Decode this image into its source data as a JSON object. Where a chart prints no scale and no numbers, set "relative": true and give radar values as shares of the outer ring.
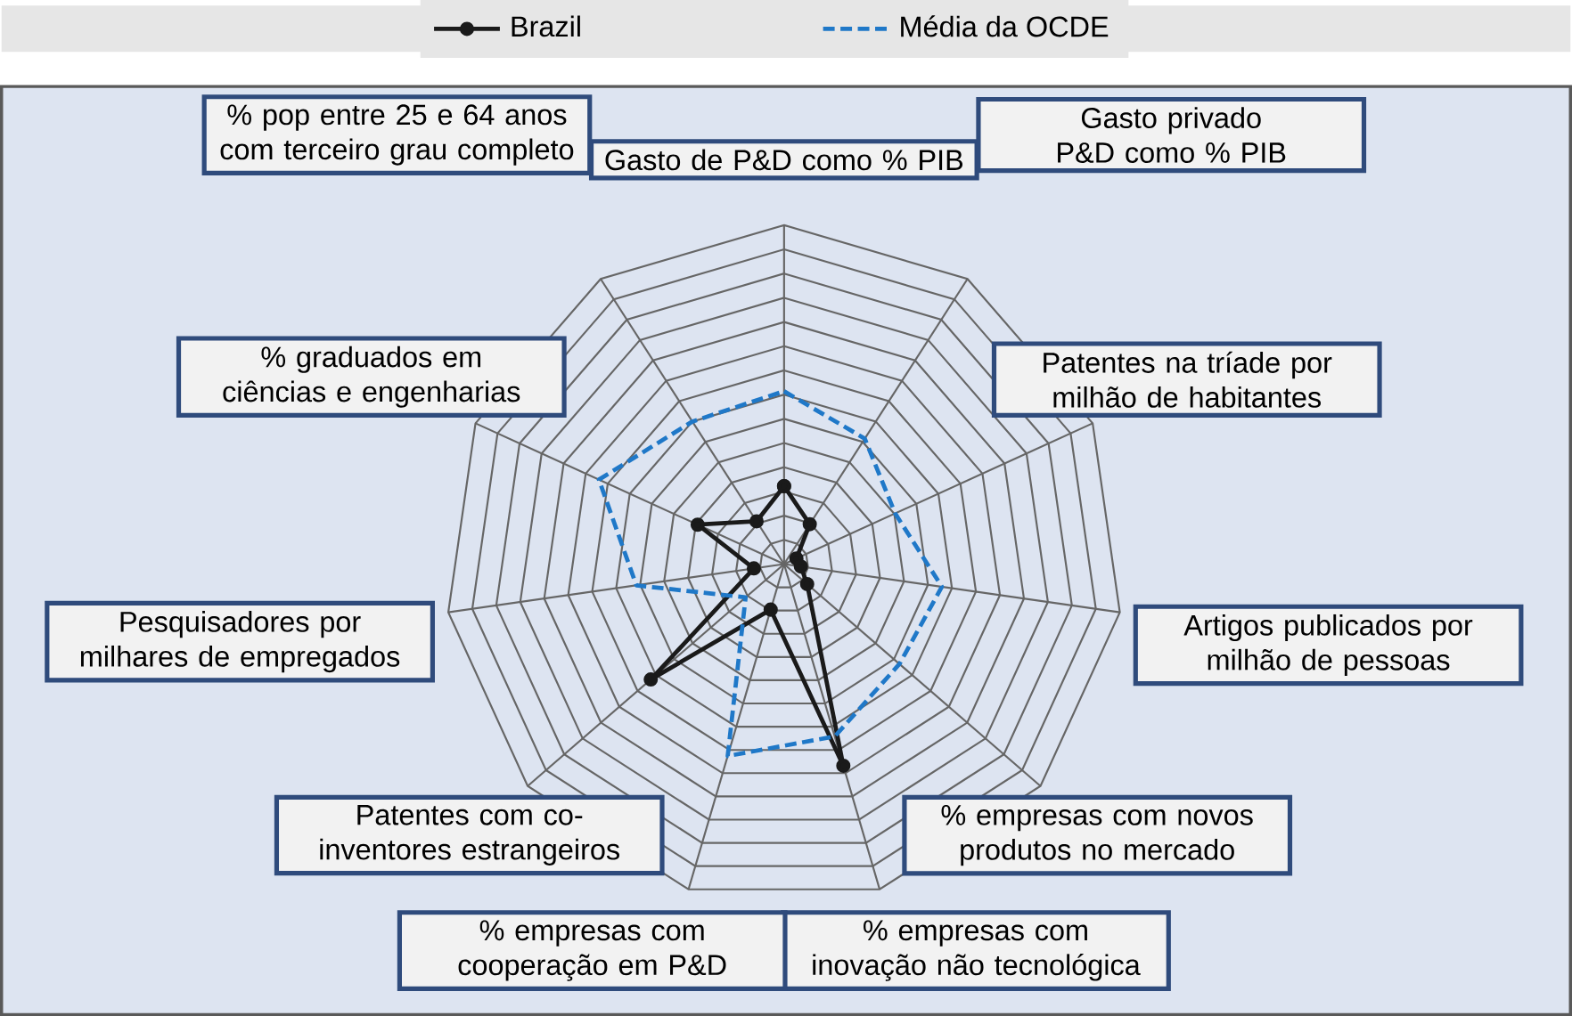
{
  "chart_data": {
    "type": "radar",
    "relative": true,
    "grid": true,
    "legend": "top",
    "categories": [
      "Gasto de P&D como % PIB",
      "Gasto privado P&D como % PIB",
      "Patentes na tríade por milhão de habitantes",
      "Artigos publicados por milhão de pessoas",
      "% empresas com novos produtos no mercado",
      "% empresas com inovação não tecnológica",
      "% empresas com cooperação em P&D",
      "Patentes com co-inventores estrangeiros",
      "Pesquisadores por milhares de empregados",
      "% graduados em ciências e engenharias",
      "% pop entre 25 e 64 anos com terceiro grau completo"
    ],
    "series": [
      {
        "name": "Brazil",
        "color": "#1a1a1a",
        "line_style": "solid",
        "marker": "circle",
        "values": [
          0.23,
          0.14,
          0.04,
          0.05,
          0.09,
          0.62,
          0.14,
          0.52,
          0.09,
          0.28,
          0.15
        ]
      },
      {
        "name": "Média da OCDE",
        "color": "#1f78c8",
        "line_style": "dashed",
        "marker": "none",
        "values": [
          0.51,
          0.44,
          0.36,
          0.47,
          0.45,
          0.53,
          0.59,
          0.15,
          0.44,
          0.6,
          0.5
        ]
      }
    ]
  }
}
